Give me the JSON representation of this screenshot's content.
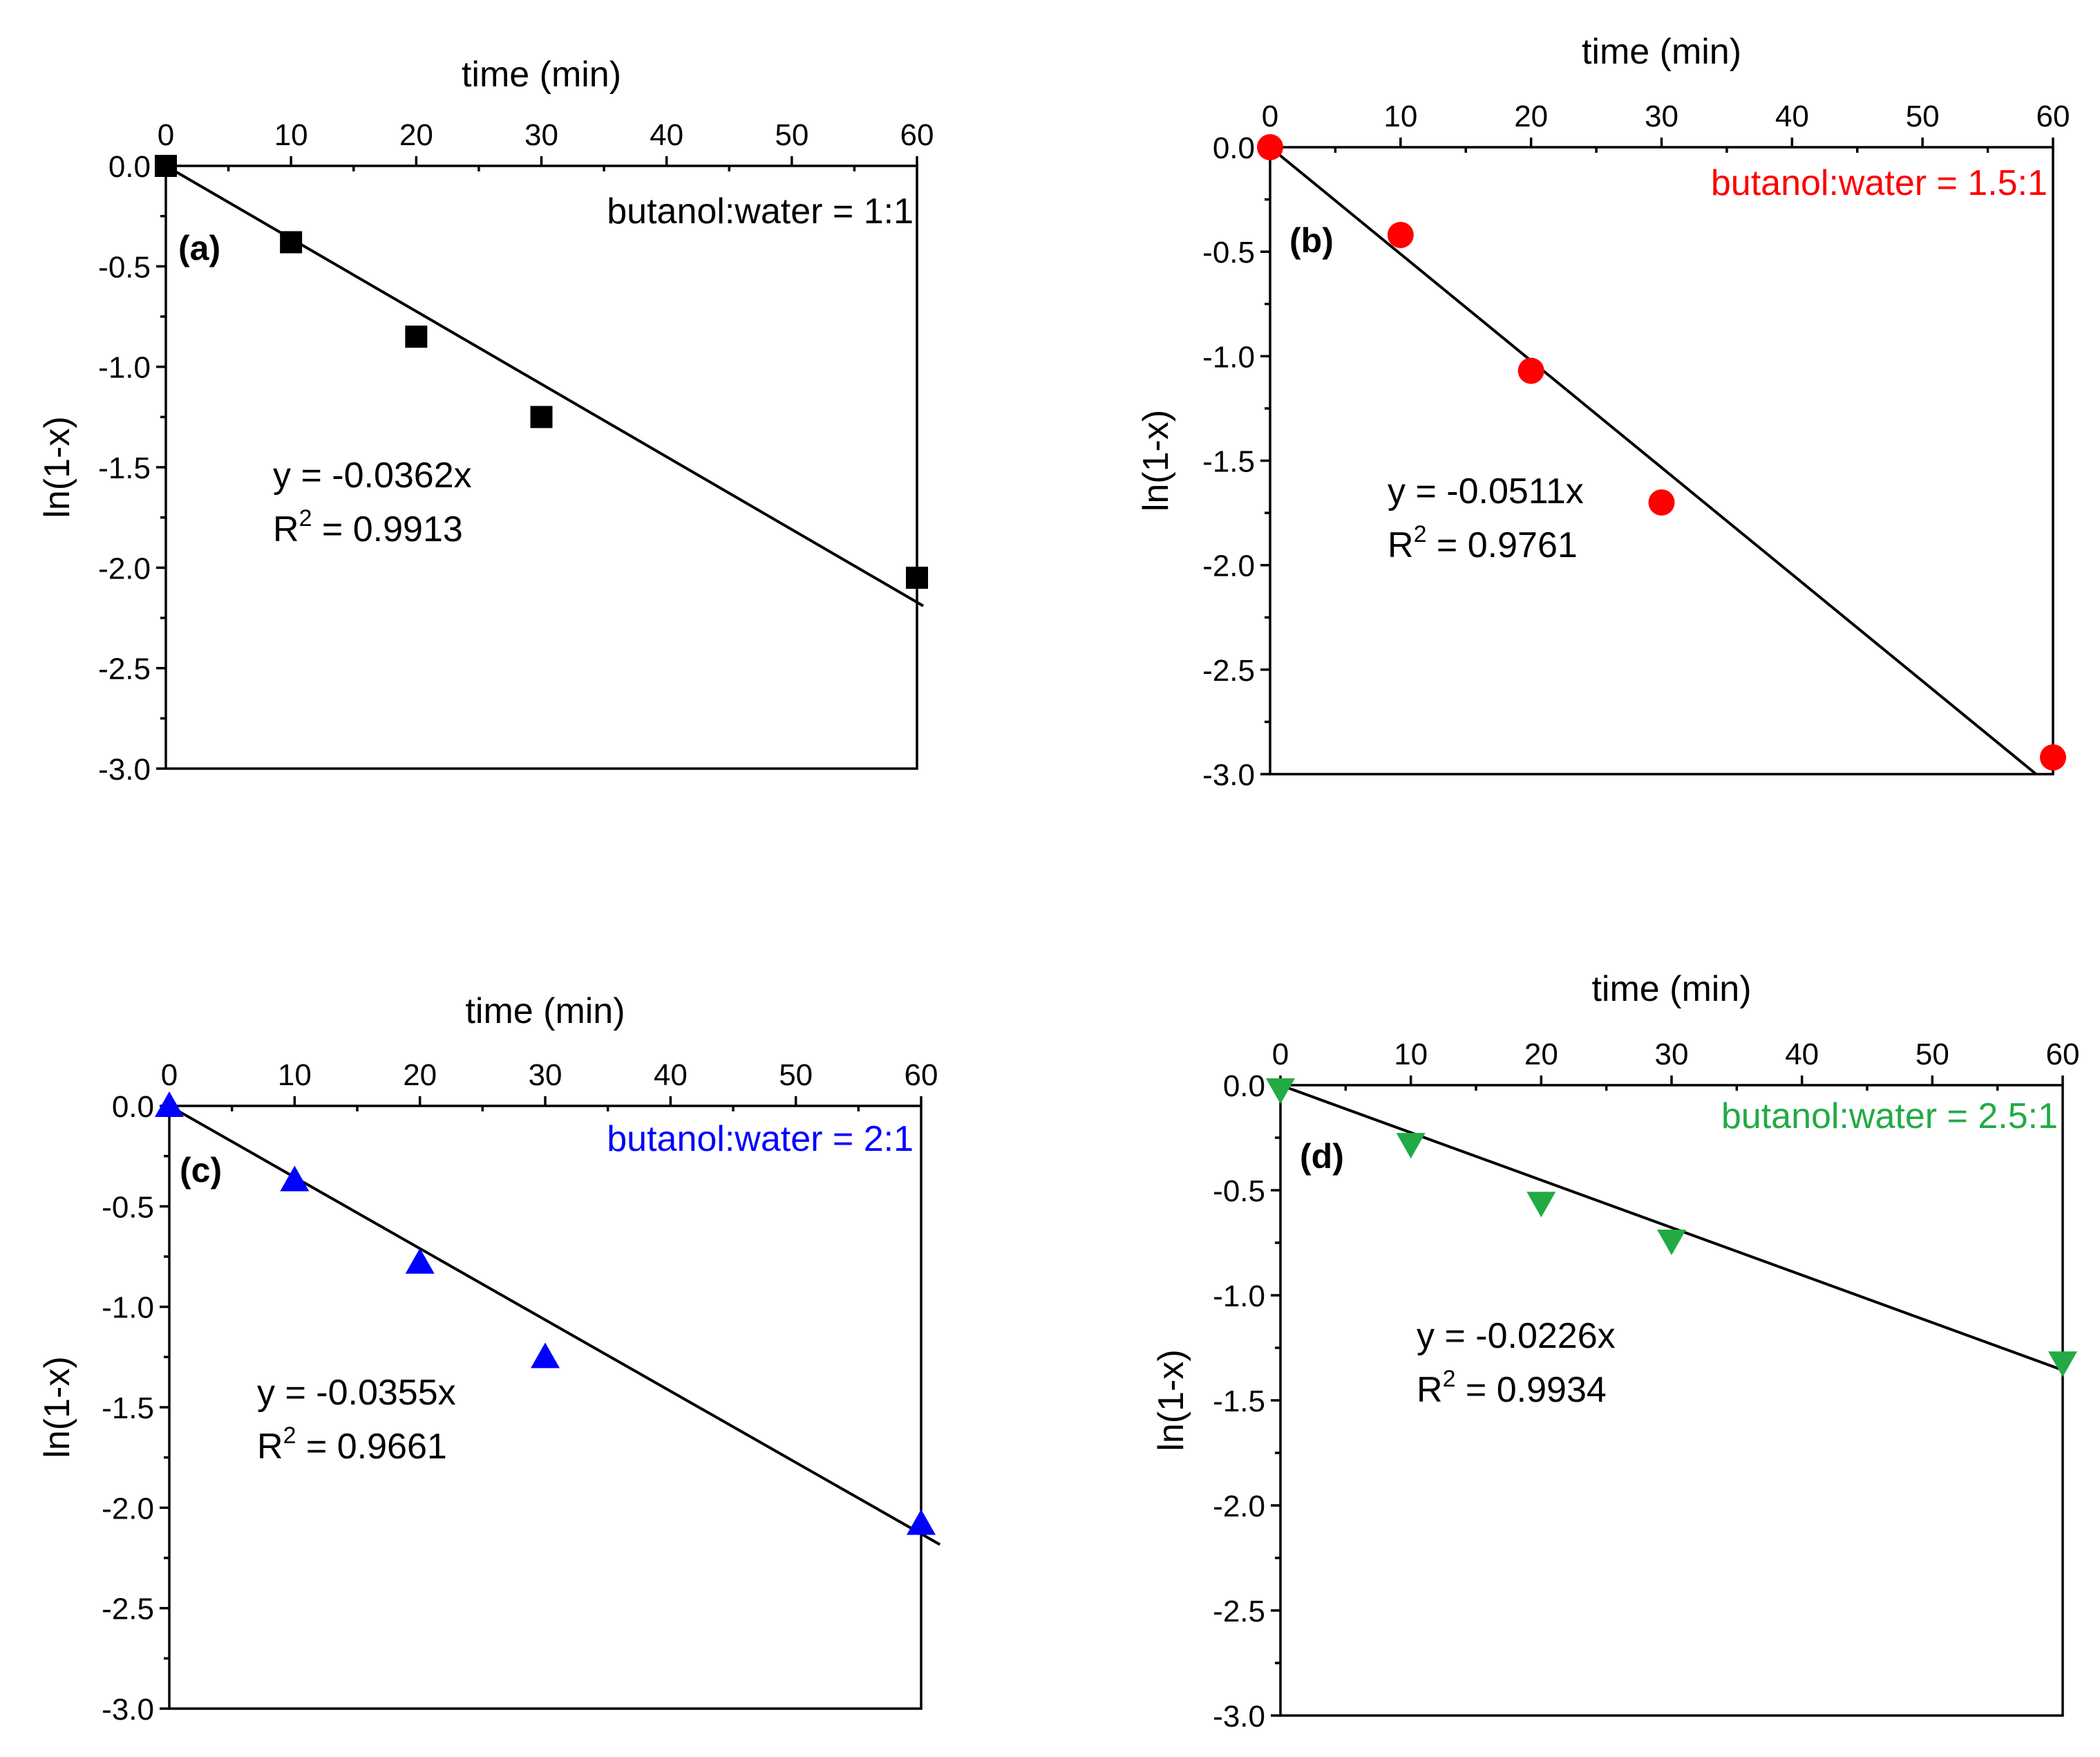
{
  "chart_data": [
    {
      "type": "scatter",
      "panel_label": "(a)",
      "xlabel": "time (min)",
      "ylabel": "ln(1-x)",
      "xlim": [
        0,
        60
      ],
      "ylim": [
        -3.0,
        0.0
      ],
      "x_ticks": [
        0,
        10,
        20,
        30,
        40,
        50,
        60
      ],
      "x_tick_labels": [
        "0",
        "10",
        "20",
        "30",
        "40",
        "50",
        "60"
      ],
      "y_ticks": [
        0.0,
        -0.5,
        -1.0,
        -1.5,
        -2.0,
        -2.5,
        -3.0
      ],
      "y_tick_labels": [
        "0.0",
        "-0.5",
        "-1.0",
        "-1.5",
        "-2.0",
        "-2.5",
        "-3.0"
      ],
      "x_axis_position": "top",
      "series_label": "butanol:water = 1:1",
      "color": "#000000",
      "marker": "square",
      "x": [
        0,
        10,
        20,
        30,
        60
      ],
      "y": [
        0.0,
        -0.38,
        -0.85,
        -1.25,
        -2.05
      ],
      "fit": {
        "slope": -0.0362,
        "x_end": 60.5,
        "equation": "y = -0.0362x",
        "r2_prefix": "R",
        "r2_exp": "2",
        "r2_value": " = 0.9913"
      }
    },
    {
      "type": "scatter",
      "panel_label": "(b)",
      "xlabel": "time (min)",
      "ylabel": "ln(1-x)",
      "xlim": [
        0,
        60
      ],
      "ylim": [
        -3.0,
        0.0
      ],
      "x_ticks": [
        0,
        10,
        20,
        30,
        40,
        50,
        60
      ],
      "x_tick_labels": [
        "0",
        "10",
        "20",
        "30",
        "40",
        "50",
        "60"
      ],
      "y_ticks": [
        0.0,
        -0.5,
        -1.0,
        -1.5,
        -2.0,
        -2.5,
        -3.0
      ],
      "y_tick_labels": [
        "0.0",
        "-0.5",
        "-1.0",
        "-1.5",
        "-2.0",
        "-2.5",
        "-3.0"
      ],
      "x_axis_position": "top",
      "series_label": "butanol:water = 1.5:1",
      "color": "#ff0000",
      "marker": "circle",
      "x": [
        0,
        10,
        20,
        30,
        60
      ],
      "y": [
        0.0,
        -0.42,
        -1.07,
        -1.7,
        -2.92
      ],
      "fit": {
        "slope": -0.0511,
        "x_end": 58.7,
        "equation": "y = -0.0511x",
        "r2_prefix": "R",
        "r2_exp": "2",
        "r2_value": " = 0.9761"
      }
    },
    {
      "type": "scatter",
      "panel_label": "(c)",
      "xlabel": "time (min)",
      "ylabel": "ln(1-x)",
      "xlim": [
        0,
        60
      ],
      "ylim": [
        -3.0,
        0.0
      ],
      "x_ticks": [
        0,
        10,
        20,
        30,
        40,
        50,
        60
      ],
      "x_tick_labels": [
        "0",
        "10",
        "20",
        "30",
        "40",
        "50",
        "60"
      ],
      "y_ticks": [
        0.0,
        -0.5,
        -1.0,
        -1.5,
        -2.0,
        -2.5,
        -3.0
      ],
      "y_tick_labels": [
        "0.0",
        "-0.5",
        "-1.0",
        "-1.5",
        "-2.0",
        "-2.5",
        "-3.0"
      ],
      "x_axis_position": "top",
      "series_label": "butanol:water = 2:1",
      "color": "#0000ff",
      "marker": "triangle-up",
      "x": [
        0,
        10,
        20,
        30,
        60
      ],
      "y": [
        0.0,
        -0.37,
        -0.78,
        -1.25,
        -2.08
      ],
      "fit": {
        "slope": -0.0355,
        "x_end": 61.5,
        "equation": "y = -0.0355x",
        "r2_prefix": "R",
        "r2_exp": "2",
        "r2_value": " = 0.9661"
      }
    },
    {
      "type": "scatter",
      "panel_label": "(d)",
      "xlabel": "time (min)",
      "ylabel": "ln(1-x)",
      "xlim": [
        0,
        60
      ],
      "ylim": [
        -3.0,
        0.0
      ],
      "x_ticks": [
        0,
        10,
        20,
        30,
        40,
        50,
        60
      ],
      "x_tick_labels": [
        "0",
        "10",
        "20",
        "30",
        "40",
        "50",
        "60"
      ],
      "y_ticks": [
        0.0,
        -0.5,
        -1.0,
        -1.5,
        -2.0,
        -2.5,
        -3.0
      ],
      "y_tick_labels": [
        "0.0",
        "-0.5",
        "-1.0",
        "-1.5",
        "-2.0",
        "-2.5",
        "-3.0"
      ],
      "x_axis_position": "top",
      "series_label": "butanol:water = 2.5:1",
      "color": "#22aa44",
      "marker": "triangle-down",
      "x": [
        0,
        10,
        20,
        30,
        60
      ],
      "y": [
        -0.02,
        -0.28,
        -0.56,
        -0.74,
        -1.32
      ],
      "fit": {
        "slope": -0.0226,
        "x_end": 60,
        "equation": "y = -0.0226x",
        "r2_prefix": "R",
        "r2_exp": "2",
        "r2_value": " = 0.9934"
      }
    }
  ]
}
